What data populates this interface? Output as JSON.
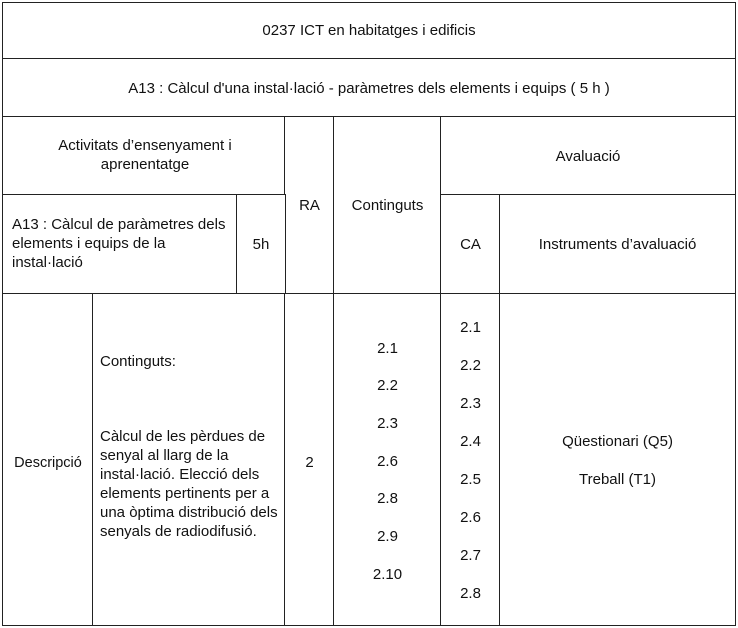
{
  "header": {
    "module_title": "0237 ICT en habitatges i edificis",
    "activity_title": "A13 :  Càlcul d'una instal·lació  -  paràmetres  dels elements i equips  ( 5 h )"
  },
  "columns": {
    "activities": "Activitats d’ensenyament i aprenentatge",
    "ra": "RA",
    "contents": "Continguts",
    "evaluation": "Avaluació",
    "ca": "CA",
    "instruments": "Instruments d’avaluació"
  },
  "activity": {
    "name": "A13 :  Càlcul de paràmetres dels elements i equips de la instal·lació",
    "hours": "5h"
  },
  "row": {
    "label": "Descripció",
    "contents_heading": "Continguts:",
    "contents_text": "Càlcul de les pèrdues de senyal al llarg de la instal·lació. Elecció dels elements pertinents per a una òptima distribució dels senyals de radiodifusió.",
    "ra": "2",
    "contents_codes": [
      "2.1",
      "2.2",
      "2.3",
      "2.6",
      "2.8",
      "2.9",
      "2.10"
    ],
    "ca_codes": [
      "2.1",
      "2.2",
      "2.3",
      "2.4",
      "2.5",
      "2.6",
      "2.7",
      "2.8"
    ],
    "instruments": [
      "Qüestionari (Q5)",
      "Treball (T1)"
    ]
  }
}
